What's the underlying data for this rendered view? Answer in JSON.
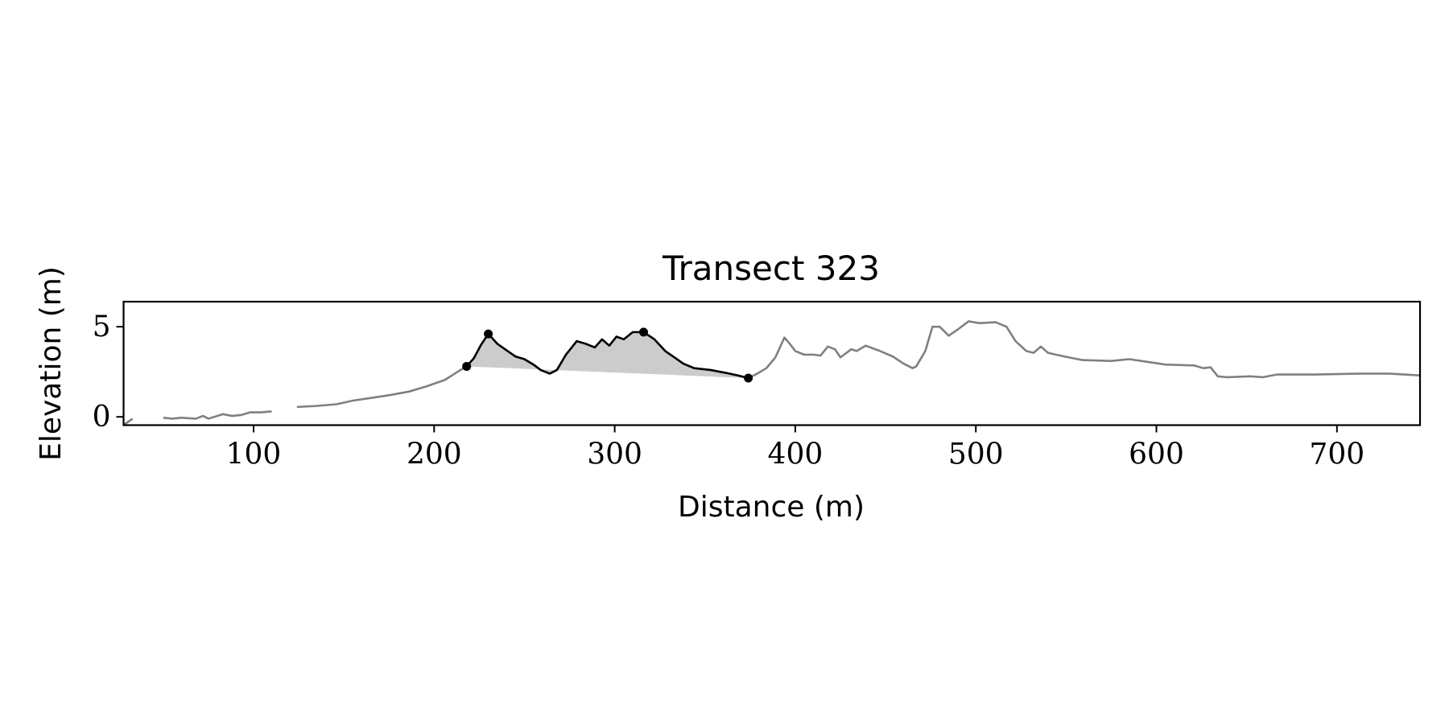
{
  "chart_data": {
    "type": "line",
    "title": "Transect 323",
    "x_label": "Distance (m)",
    "y_label": "Elevation (m)",
    "xlim": [
      28,
      746
    ],
    "ylim": [
      -0.46,
      6.39
    ],
    "xticks": [
      100,
      200,
      300,
      400,
      500,
      600,
      700
    ],
    "yticks": [
      0,
      5
    ],
    "series": [
      {
        "color": "#808080",
        "x": [
          28,
          33,
          40,
          50,
          55,
          60,
          68,
          72,
          75,
          83,
          88,
          93,
          98,
          104,
          110,
          117,
          124,
          134,
          146,
          155,
          165,
          175,
          186,
          196,
          206,
          213,
          218,
          222,
          226,
          230,
          235,
          240,
          245,
          250,
          255,
          259,
          264,
          268,
          273,
          279,
          284,
          289,
          293,
          297,
          301,
          305,
          310,
          316,
          322,
          328,
          333,
          338,
          344,
          353,
          361,
          368,
          374,
          379,
          384,
          389,
          394,
          397,
          400,
          405,
          410,
          414,
          418,
          422,
          425,
          431,
          434,
          439,
          447,
          454,
          460,
          465,
          467,
          472,
          476,
          480,
          485,
          490,
          496,
          502,
          511,
          517,
          522,
          528,
          532,
          536,
          540,
          549,
          559,
          575,
          585,
          595,
          605,
          621,
          626,
          630,
          634,
          639,
          652,
          659,
          667,
          688,
          713,
          729,
          746
        ],
        "values": [
          -0.46,
          -0.1,
          null,
          -0.05,
          -0.1,
          -0.05,
          -0.1,
          0.05,
          -0.1,
          0.15,
          0.05,
          0.1,
          0.25,
          0.25,
          0.3,
          null,
          0.55,
          0.6,
          0.7,
          0.9,
          1.05,
          1.2,
          1.4,
          1.7,
          2.05,
          2.5,
          2.8,
          3.25,
          4.0,
          4.6,
          4.05,
          3.7,
          3.35,
          3.2,
          2.9,
          2.6,
          2.4,
          2.6,
          3.45,
          4.2,
          4.05,
          3.85,
          4.3,
          3.95,
          4.45,
          4.3,
          4.7,
          4.7,
          4.3,
          3.65,
          3.3,
          2.95,
          2.7,
          2.6,
          2.45,
          2.3,
          2.15,
          2.4,
          2.7,
          3.3,
          4.4,
          4.05,
          3.65,
          3.45,
          3.45,
          3.4,
          3.9,
          3.75,
          3.3,
          3.75,
          3.65,
          3.95,
          3.65,
          3.35,
          2.95,
          2.7,
          2.8,
          3.65,
          5.0,
          5.0,
          4.5,
          4.85,
          5.3,
          5.2,
          5.25,
          5.0,
          4.2,
          3.65,
          3.55,
          3.9,
          3.55,
          3.35,
          3.15,
          3.1,
          3.2,
          3.05,
          2.9,
          2.85,
          2.7,
          2.75,
          2.25,
          2.2,
          2.25,
          2.2,
          2.35,
          2.35,
          2.4,
          2.4,
          2.3
        ]
      },
      {
        "color": "#000000",
        "fill": "#cccccc",
        "x": [
          218,
          222,
          226,
          230,
          235,
          240,
          245,
          250,
          255,
          259,
          264,
          268,
          273,
          279,
          284,
          289,
          293,
          297,
          301,
          305,
          310,
          316,
          322,
          328,
          333,
          338,
          344,
          353,
          361,
          368,
          374
        ],
        "values": [
          2.8,
          3.25,
          4.0,
          4.6,
          4.05,
          3.7,
          3.35,
          3.2,
          2.9,
          2.6,
          2.4,
          2.6,
          3.45,
          4.2,
          4.05,
          3.85,
          4.3,
          3.95,
          4.45,
          4.3,
          4.7,
          4.7,
          4.3,
          3.65,
          3.3,
          2.95,
          2.7,
          2.6,
          2.45,
          2.3,
          2.15
        ]
      }
    ],
    "points": {
      "color": "#000000",
      "x": [
        218,
        230,
        316,
        374
      ],
      "values": [
        2.8,
        4.6,
        4.7,
        2.15
      ]
    }
  }
}
